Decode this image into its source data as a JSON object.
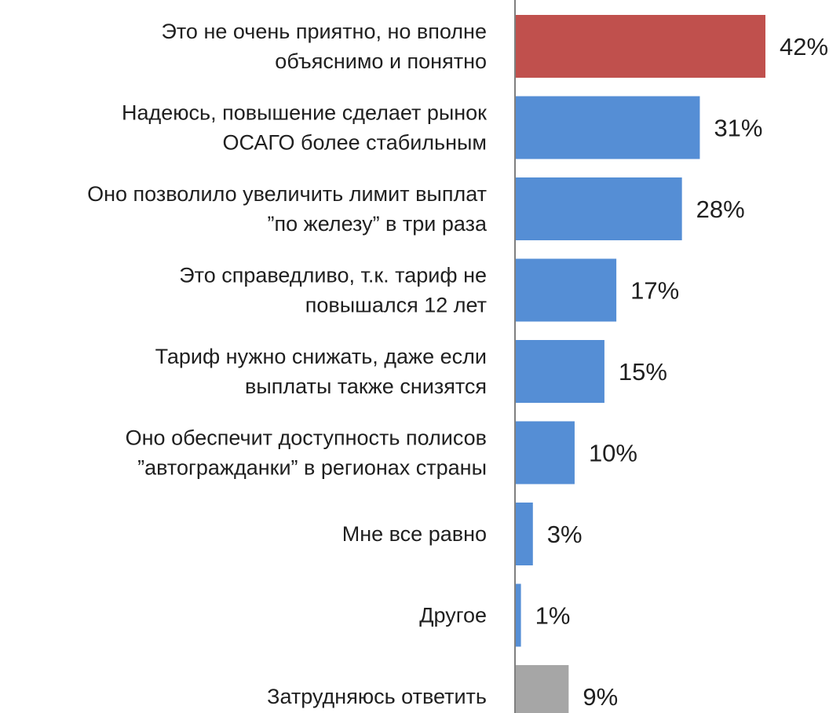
{
  "chart_data": {
    "type": "bar",
    "orientation": "horizontal",
    "categories": [
      [
        "Это не очень приятно, но вполне",
        "объяснимо и понятно"
      ],
      [
        "Надеюсь, повышение сделает рынок",
        "ОСАГО более стабильным"
      ],
      [
        "Оно позволило увеличить лимит выплат",
        "”по железу” в три раза"
      ],
      [
        "Это справедливо, т.к. тариф не",
        "повышался 12 лет"
      ],
      [
        "Тариф нужно снижать, даже если",
        "выплаты также снизятся"
      ],
      [
        "Оно обеспечит доступность полисов",
        "”автогражданки” в регионах страны"
      ],
      [
        "Мне все равно"
      ],
      [
        "Другое"
      ],
      [
        "Затрудняюсь ответить"
      ]
    ],
    "values": [
      42,
      31,
      28,
      17,
      15,
      10,
      3,
      1,
      9
    ],
    "value_labels": [
      "42%",
      "31%",
      "28%",
      "17%",
      "15%",
      "10%",
      "3%",
      "1%",
      "9%"
    ],
    "bar_colors": [
      "#c0504d",
      "#558ed5",
      "#558ed5",
      "#558ed5",
      "#558ed5",
      "#558ed5",
      "#558ed5",
      "#558ed5",
      "#a6a6a6"
    ],
    "axis_color": "#7f7f7f",
    "xlim": [
      0,
      42
    ],
    "legend": "none",
    "grid": false
  }
}
